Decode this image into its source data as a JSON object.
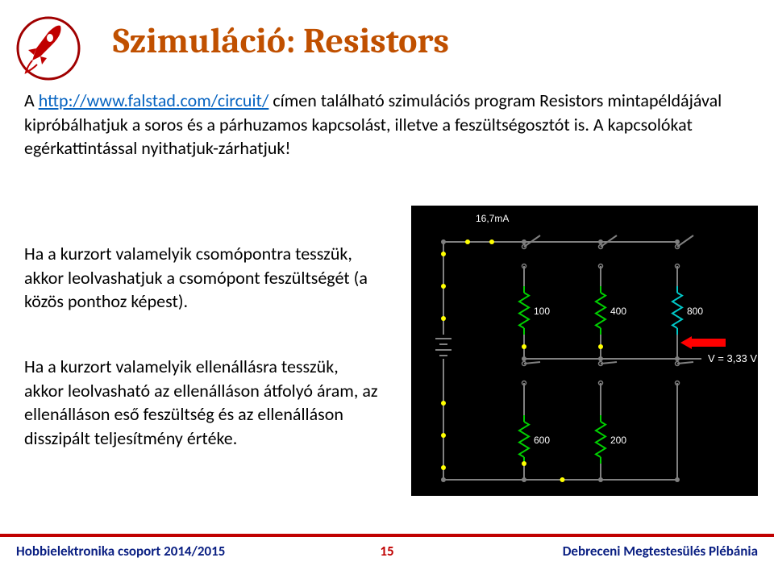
{
  "title": "Szimuláció: Resistors",
  "body": {
    "prefix": "A ",
    "link": "http://www.falstad.com/circuit/",
    "rest": " címen található szimulációs program Resistors mintapéldájával kipróbálhatjuk a soros és a párhuzamos kapcsolást, illetve a feszültségosztót is. A kapcsolókat egérkattintással nyithatjuk-zárhatjuk!"
  },
  "para2": "Ha a kurzort valamelyik csomópontra tesszük, akkor leolvashatjuk a csomópont feszültségét (a közös ponthoz képest).",
  "para3": "Ha a kurzort valamelyik ellenállásra tesszük, akkor leolvasható az ellenálláson átfolyó áram, az ellenálláson eső feszültség és az ellenálláson disszipált teljesítmény értéke.",
  "footer": {
    "left": "Hobbielektronika csoport 2014/2015",
    "mid": "15",
    "right": "Debreceni Megtestesülés Plébánia"
  },
  "circuit": {
    "current_label": "16,7mA",
    "voltage_label": "V = 3,33 V",
    "r100": "100",
    "r400": "400",
    "r800": "800",
    "r600": "600",
    "r200": "200",
    "wire_color": "#808080",
    "dot_color": "#ffff00",
    "resistor_color": "#00d000",
    "text_color": "#ffffff",
    "arrow_color": "#ff0000",
    "highlight_color": "#00c8c8"
  }
}
